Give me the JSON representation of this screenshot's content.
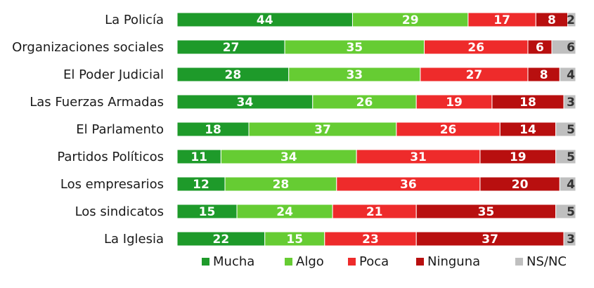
{
  "chart_data": {
    "type": "bar",
    "orientation": "horizontal",
    "stacked": true,
    "categories": [
      "La Policía",
      "Organizaciones sociales",
      "El Poder Judicial",
      "Las Fuerzas Armadas",
      "El Parlamento",
      "Partidos Políticos",
      "Los empresarios",
      "Los sindicatos",
      "La Iglesia"
    ],
    "series": [
      {
        "name": "Mucha",
        "color": "#1e9a2a",
        "values": [
          44,
          27,
          28,
          34,
          18,
          11,
          12,
          15,
          22
        ]
      },
      {
        "name": "Algo",
        "color": "#66cc33",
        "values": [
          29,
          35,
          33,
          26,
          37,
          34,
          28,
          24,
          15
        ]
      },
      {
        "name": "Poca",
        "color": "#ee2b2b",
        "values": [
          17,
          26,
          27,
          19,
          26,
          31,
          36,
          21,
          23
        ]
      },
      {
        "name": "Ninguna",
        "color": "#b80f0f",
        "values": [
          8,
          6,
          8,
          18,
          14,
          19,
          20,
          35,
          37
        ]
      },
      {
        "name": "NS/NC",
        "color": "#bfbfbf",
        "values": [
          2,
          6,
          4,
          3,
          5,
          5,
          4,
          5,
          3
        ]
      }
    ],
    "xlim": [
      0,
      100
    ],
    "legend": "bottom",
    "grid": false
  }
}
